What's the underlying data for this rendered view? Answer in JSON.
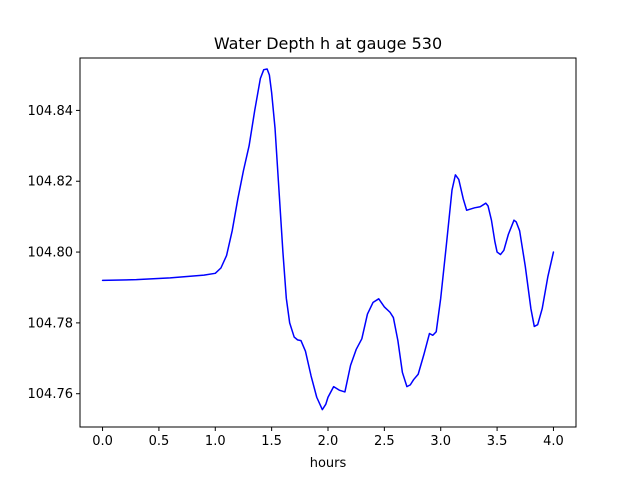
{
  "chart_data": {
    "type": "line",
    "title": "Water Depth h at gauge 530",
    "xlabel": "hours",
    "ylabel": "",
    "xlim": [
      -0.2,
      4.2
    ],
    "ylim": [
      104.7506,
      104.8548
    ],
    "xticks": [
      0.0,
      0.5,
      1.0,
      1.5,
      2.0,
      2.5,
      3.0,
      3.5,
      4.0
    ],
    "xtick_labels": [
      "0.0",
      "0.5",
      "1.0",
      "1.5",
      "2.0",
      "2.5",
      "3.0",
      "3.5",
      "4.0"
    ],
    "yticks": [
      104.76,
      104.78,
      104.8,
      104.82,
      104.84
    ],
    "ytick_labels": [
      "104.76",
      "104.78",
      "104.80",
      "104.82",
      "104.84"
    ],
    "grid": false,
    "series": [
      {
        "color": "#0000ff",
        "x": [
          0.0,
          0.3,
          0.6,
          0.9,
          1.0,
          1.05,
          1.1,
          1.15,
          1.2,
          1.25,
          1.3,
          1.35,
          1.4,
          1.43,
          1.46,
          1.48,
          1.5,
          1.53,
          1.56,
          1.6,
          1.63,
          1.66,
          1.7,
          1.73,
          1.76,
          1.8,
          1.85,
          1.9,
          1.95,
          1.98,
          2.0,
          2.05,
          2.1,
          2.15,
          2.18,
          2.2,
          2.25,
          2.3,
          2.35,
          2.4,
          2.45,
          2.5,
          2.55,
          2.58,
          2.62,
          2.66,
          2.7,
          2.73,
          2.76,
          2.8,
          2.85,
          2.9,
          2.93,
          2.96,
          3.0,
          3.05,
          3.1,
          3.13,
          3.16,
          3.2,
          3.23,
          3.25,
          3.3,
          3.35,
          3.4,
          3.42,
          3.45,
          3.48,
          3.5,
          3.53,
          3.56,
          3.6,
          3.65,
          3.67,
          3.7,
          3.75,
          3.8,
          3.83,
          3.86,
          3.9,
          3.95,
          4.0
        ],
        "y": [
          104.792,
          104.7922,
          104.7927,
          104.7935,
          104.794,
          104.7955,
          104.799,
          104.806,
          104.815,
          104.823,
          104.83,
          104.84,
          104.849,
          104.8515,
          104.8517,
          104.85,
          104.845,
          104.835,
          104.82,
          104.8,
          104.787,
          104.78,
          104.776,
          104.7752,
          104.775,
          104.772,
          104.765,
          104.759,
          104.7555,
          104.757,
          104.759,
          104.762,
          104.761,
          104.7605,
          104.765,
          104.768,
          104.7725,
          104.7755,
          104.7825,
          104.7858,
          104.7868,
          104.7845,
          104.783,
          104.7815,
          104.775,
          104.766,
          104.762,
          104.7625,
          104.764,
          104.7655,
          104.771,
          104.777,
          104.7765,
          104.7775,
          104.787,
          104.802,
          104.8175,
          104.8218,
          104.8205,
          104.815,
          104.8118,
          104.812,
          104.8125,
          104.8128,
          104.8138,
          104.813,
          104.809,
          104.803,
          104.8,
          104.7993,
          104.8005,
          104.805,
          104.809,
          104.8085,
          104.806,
          104.796,
          104.784,
          104.779,
          104.7795,
          104.784,
          104.793,
          104.8
        ]
      }
    ]
  }
}
